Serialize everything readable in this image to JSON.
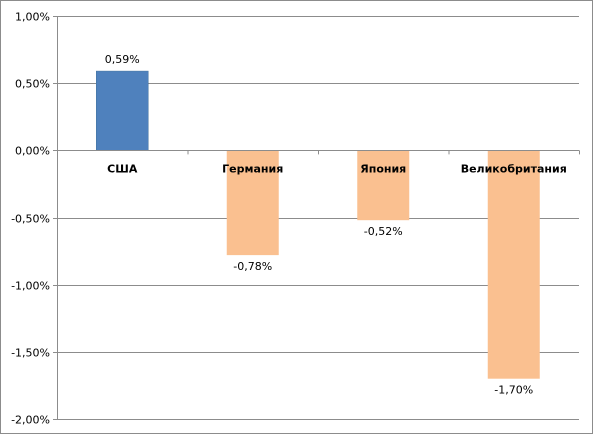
{
  "chart_data": {
    "type": "bar",
    "title": "",
    "xlabel": "",
    "ylabel": "",
    "categories": [
      "США",
      "Германия",
      "Япония",
      "Великобритания"
    ],
    "values": [
      0.59,
      -0.78,
      -0.52,
      -1.7
    ],
    "data_labels": [
      "0,59%",
      "-0,78%",
      "-0,52%",
      "-1,70%"
    ],
    "ylim": [
      -2.0,
      1.0
    ],
    "y_ticks": [
      1.0,
      0.5,
      0.0,
      -0.5,
      -1.0,
      -1.5,
      -2.0
    ],
    "y_tick_labels": [
      "1,00%",
      "0,50%",
      "0,00%",
      "-0,50%",
      "-1,00%",
      "-1,50%",
      "-2,00%"
    ],
    "grid": true,
    "legend": "none",
    "colors": {
      "positive": "#4f81bd",
      "negative": "#fac090",
      "grid": "#8c8c8c",
      "axis": "#8c8c8c"
    }
  }
}
